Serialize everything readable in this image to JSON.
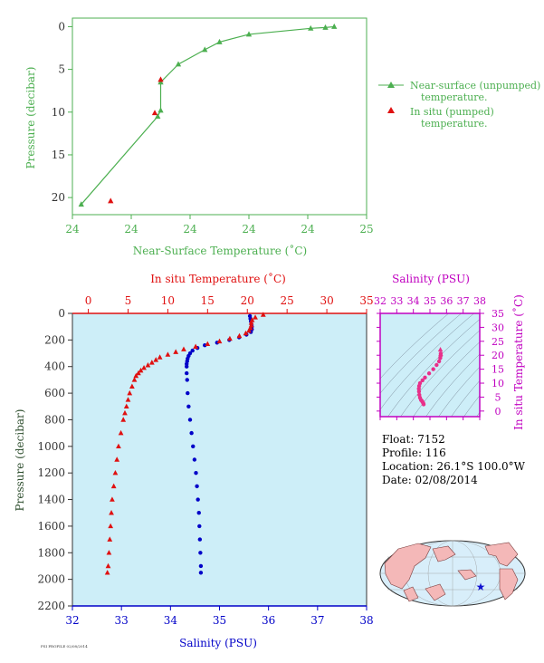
{
  "colors": {
    "green": "#4caf50",
    "red": "#e01010",
    "blue": "#0000c8",
    "magenta": "#c000c0",
    "pink": "#e8308a",
    "axis_text": "#333333",
    "panel_bg": "#cdeef8",
    "land": "#f4b8b8",
    "ocean": "#d8eefa",
    "star": "#1010d0"
  },
  "info": {
    "float": "Float:  7152",
    "profile": "Profile:  116",
    "location": "Location:  26.1°S  100.0°W",
    "date": "Date:  02/08/2014"
  },
  "footer_tag": "FSI PROFILE 02/08/2014",
  "chart_data": [
    {
      "type": "line",
      "name": "near-surface",
      "xlabel": "Near-Surface Temperature (˚C)",
      "ylabel": "Pressure (decibar)",
      "xlim": [
        24,
        25
      ],
      "ylim": [
        22,
        -1
      ],
      "x_tick_values": [
        24.0,
        24.2,
        24.4,
        24.6,
        24.8,
        25.0
      ],
      "x_tick_labels": [
        "24",
        "24",
        "24",
        "24",
        "24",
        "25"
      ],
      "y_ticks": [
        0,
        5,
        10,
        15,
        20
      ],
      "series": [
        {
          "name": "Near-surface (unpumped) temperature.",
          "marker": "triangle",
          "connected": true,
          "x": [
            24.03,
            24.29,
            24.3,
            24.3,
            24.36,
            24.45,
            24.5,
            24.6,
            24.81,
            24.86,
            24.89
          ],
          "y": [
            20.8,
            10.5,
            9.8,
            6.5,
            4.4,
            2.7,
            1.8,
            0.9,
            0.2,
            0.1,
            0.0
          ]
        },
        {
          "name": "In situ (pumped) temperature.",
          "marker": "triangle",
          "connected": false,
          "x": [
            24.13,
            24.28,
            24.3
          ],
          "y": [
            20.4,
            10.1,
            6.2
          ]
        }
      ]
    },
    {
      "type": "scatter",
      "name": "profile",
      "ylabel": "Pressure (decibar)",
      "ylim": [
        2200,
        0
      ],
      "y_ticks": [
        0,
        200,
        400,
        600,
        800,
        1000,
        1200,
        1400,
        1600,
        1800,
        2000,
        2200
      ],
      "temperature_axis": {
        "label": "In situ Temperature (˚C)",
        "range": [
          -2,
          35
        ],
        "ticks": [
          0,
          5,
          10,
          15,
          20,
          25,
          30,
          35
        ]
      },
      "salinity_axis": {
        "label": "Salinity (PSU)",
        "range": [
          32,
          38
        ],
        "ticks": [
          32,
          33,
          34,
          35,
          36,
          37,
          38
        ]
      },
      "temperature_profile": {
        "pressure": [
          10,
          30,
          50,
          70,
          90,
          110,
          130,
          150,
          170,
          190,
          210,
          230,
          250,
          270,
          290,
          310,
          330,
          350,
          370,
          390,
          410,
          430,
          450,
          470,
          500,
          550,
          600,
          650,
          700,
          750,
          800,
          900,
          1000,
          1100,
          1200,
          1300,
          1400,
          1500,
          1600,
          1700,
          1800,
          1900,
          1950
        ],
        "temperature": [
          22.0,
          21.0,
          20.6,
          20.5,
          20.5,
          20.4,
          20.2,
          19.8,
          19.0,
          17.8,
          16.5,
          15.0,
          13.5,
          12.0,
          11.0,
          10.0,
          9.0,
          8.5,
          8.0,
          7.5,
          7.0,
          6.6,
          6.3,
          6.0,
          5.8,
          5.5,
          5.2,
          5.0,
          4.8,
          4.6,
          4.4,
          4.1,
          3.8,
          3.6,
          3.4,
          3.2,
          3.0,
          2.9,
          2.8,
          2.7,
          2.6,
          2.5,
          2.4
        ]
      },
      "salinity_profile": {
        "pressure": [
          20,
          40,
          60,
          80,
          100,
          120,
          140,
          160,
          180,
          200,
          220,
          240,
          260,
          280,
          300,
          320,
          340,
          360,
          380,
          400,
          450,
          500,
          600,
          700,
          800,
          900,
          1000,
          1100,
          1200,
          1300,
          1400,
          1500,
          1600,
          1700,
          1800,
          1900,
          1950
        ],
        "salinity": [
          35.62,
          35.63,
          35.64,
          35.65,
          35.66,
          35.66,
          35.64,
          35.55,
          35.4,
          35.2,
          34.95,
          34.7,
          34.55,
          34.45,
          34.4,
          34.37,
          34.35,
          34.34,
          34.33,
          34.33,
          34.33,
          34.34,
          34.35,
          34.37,
          34.4,
          34.43,
          34.46,
          34.49,
          34.52,
          34.54,
          34.56,
          34.58,
          34.59,
          34.6,
          34.61,
          34.62,
          34.62
        ]
      }
    },
    {
      "type": "scatter",
      "name": "ts-diagram",
      "xlabel": "Salinity (PSU)",
      "ylabel": "In situ Temperature (˚C)",
      "xlim": [
        32,
        38
      ],
      "ylim": [
        -2,
        35
      ],
      "x_ticks": [
        32,
        33,
        34,
        35,
        36,
        37,
        38
      ],
      "y_ticks": [
        0,
        5,
        10,
        15,
        20,
        25,
        30,
        35
      ],
      "series": [
        {
          "name": "",
          "salinity": [
            34.62,
            34.6,
            34.56,
            34.52,
            34.46,
            34.4,
            34.36,
            34.34,
            34.33,
            34.35,
            34.4,
            34.55,
            34.7,
            34.95,
            35.2,
            35.4,
            35.55,
            35.62,
            35.64,
            35.65,
            35.65,
            35.63
          ],
          "temperature": [
            2.4,
            2.8,
            3.2,
            3.6,
            4.0,
            4.8,
            5.8,
            7.0,
            8.0,
            9.0,
            10.0,
            11.0,
            12.0,
            13.5,
            15.0,
            16.5,
            17.8,
            19.0,
            19.8,
            20.4,
            20.6,
            22.0
          ]
        }
      ]
    }
  ]
}
